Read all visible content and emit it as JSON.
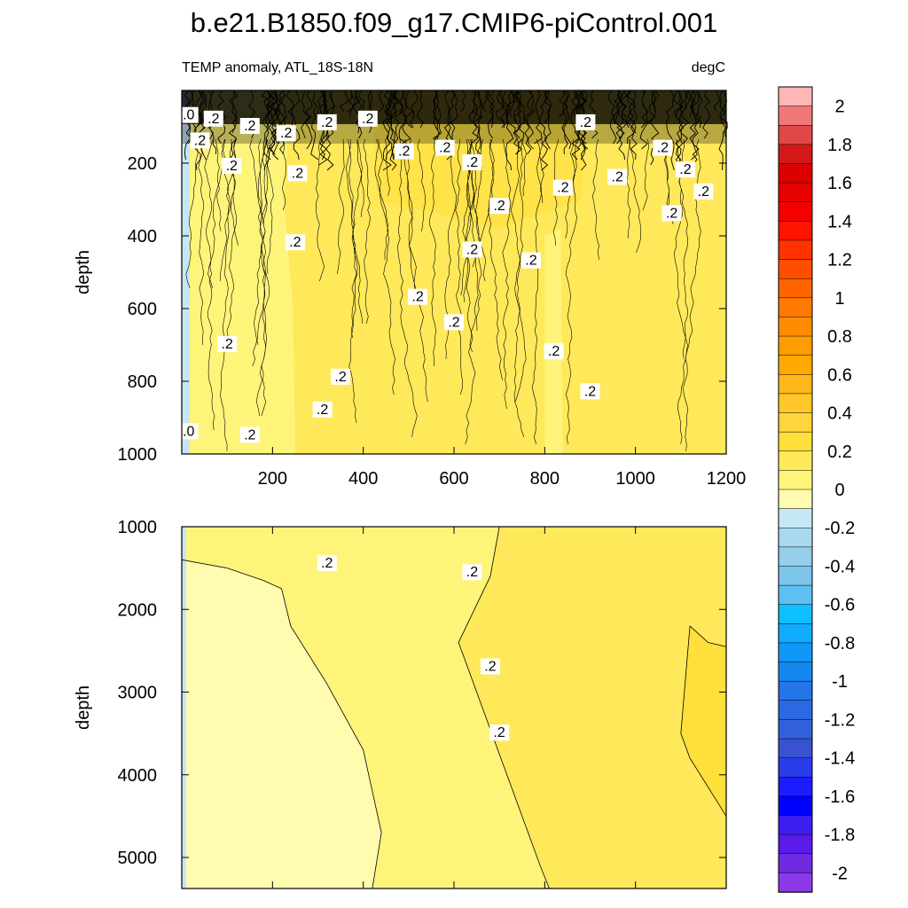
{
  "title": "b.e21.B1850.f09_g17.CMIP6-piControl.001",
  "panel_left_label": "TEMP anomaly, ATL_18S-18N",
  "panel_right_label": "degC",
  "colors": {
    "bin_-0.2_0": "#c6e7f5",
    "bin_0_0.1": "#fffbaf",
    "bin_0.1_0.2": "#fff47a",
    "bin_0.2_0.3": "#ffe95a",
    "bin_0.3_0.4": "#ffdf3a"
  },
  "chart_data": [
    {
      "type": "heatmap",
      "panel": "upper",
      "variable": "TEMP anomaly",
      "region": "ATL_18S-18N",
      "units": "degC",
      "xlabel": "",
      "ylabel": "depth",
      "xlim": [
        0,
        1200
      ],
      "ylim": [
        1000,
        0
      ],
      "x_ticks": [
        200,
        400,
        600,
        800,
        1000,
        1200
      ],
      "y_ticks": [
        200,
        400,
        600,
        800,
        1000
      ],
      "contour_interval": 0.1,
      "contour_labels": [
        ".0",
        ".2"
      ],
      "regions": [
        {
          "x_range": [
            0,
            12
          ],
          "value_range": [
            -0.2,
            0
          ]
        },
        {
          "x_range": [
            12,
            240
          ],
          "value_range": [
            0,
            0.2
          ]
        },
        {
          "x_range": [
            240,
            1200
          ],
          "value_range": [
            0.2,
            0.4
          ]
        },
        {
          "x_range": [
            800,
            840
          ],
          "value_range": [
            0,
            0.2
          ]
        }
      ],
      "grid": false
    },
    {
      "type": "heatmap",
      "panel": "lower",
      "variable": "TEMP anomaly",
      "region": "ATL_18S-18N",
      "units": "degC",
      "xlabel": "",
      "ylabel": "depth",
      "xlim": [
        0,
        1200
      ],
      "ylim": [
        5375,
        1000
      ],
      "y_ticks": [
        1000,
        2000,
        3000,
        4000,
        5000
      ],
      "contour_interval": 0.1,
      "contour_labels": [
        ".2"
      ],
      "regions": [
        {
          "x_range": [
            0,
            8
          ],
          "value_range": [
            -0.2,
            0
          ]
        },
        {
          "x_range": [
            8,
            440
          ],
          "value_range": [
            0,
            0.1
          ]
        },
        {
          "x_range": [
            180,
            800
          ],
          "value_range": [
            0.1,
            0.2
          ]
        },
        {
          "x_range": [
            560,
            1200
          ],
          "value_range": [
            0.2,
            0.3
          ]
        },
        {
          "x_range": [
            1100,
            1200
          ],
          "value_range": [
            0.3,
            0.4
          ]
        }
      ],
      "grid": false
    },
    {
      "type": "colorbar",
      "units": "degC",
      "levels": [
        -2.1,
        -2,
        -1.9,
        -1.8,
        -1.7,
        -1.6,
        -1.5,
        -1.4,
        -1.3,
        -1.2,
        -1.1,
        -1,
        -0.9,
        -0.8,
        -0.7,
        -0.6,
        -0.5,
        -0.4,
        -0.3,
        -0.2,
        -0.1,
        0,
        0.1,
        0.2,
        0.3,
        0.4,
        0.5,
        0.6,
        0.7,
        0.8,
        0.9,
        1,
        1.1,
        1.2,
        1.3,
        1.4,
        1.5,
        1.6,
        1.7,
        1.8,
        1.9,
        2,
        2.1
      ],
      "tick_labels": [
        "2",
        "1.8",
        "1.6",
        "1.4",
        "1.2",
        "1",
        "0.8",
        "0.6",
        "0.4",
        "0.2",
        "0",
        "-0.2",
        "-0.4",
        "-0.6",
        "-0.8",
        "-1",
        "-1.2",
        "-1.4",
        "-1.6",
        "-1.8",
        "-2"
      ],
      "tick_values": [
        2,
        1.8,
        1.6,
        1.4,
        1.2,
        1,
        0.8,
        0.6,
        0.4,
        0.2,
        0,
        -0.2,
        -0.4,
        -0.6,
        -0.8,
        -1,
        -1.2,
        -1.4,
        -1.6,
        -1.8,
        -2
      ],
      "bin_colors": [
        "#ffb6b6",
        "#f07878",
        "#e04848",
        "#d21818",
        "#dc0000",
        "#e80000",
        "#f40000",
        "#ff1400",
        "#ff3200",
        "#ff4e00",
        "#ff6400",
        "#ff7a00",
        "#ff8c00",
        "#ff9c00",
        "#ffaa00",
        "#ffb81a",
        "#ffc828",
        "#ffd43c",
        "#ffdf3a",
        "#ffe95a",
        "#fff47a",
        "#fffbaf",
        "#c6e7f5",
        "#a8d9ee",
        "#94cfea",
        "#7cc6ec",
        "#5ec0f2",
        "#0ec0ff",
        "#10aaff",
        "#1098f8",
        "#1488f0",
        "#2474ea",
        "#2c68e0",
        "#3260dc",
        "#3852d0",
        "#2a3cec",
        "#1c1cff",
        "#0000ff",
        "#3c1ef0",
        "#5a1ae8",
        "#6e2ae0",
        "#8c3ae8"
      ]
    }
  ]
}
